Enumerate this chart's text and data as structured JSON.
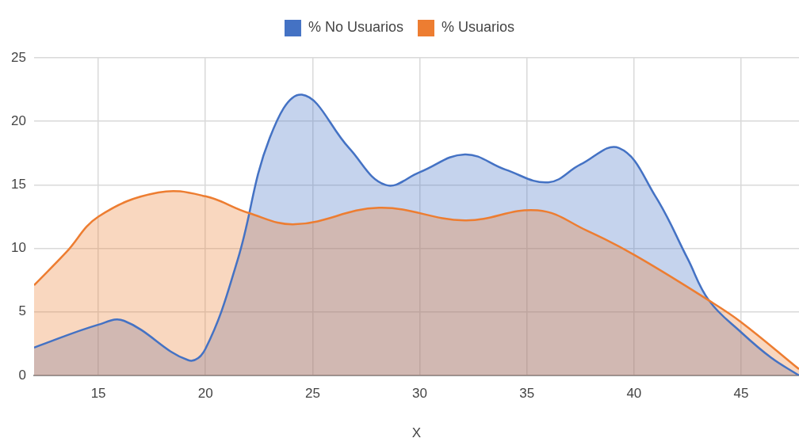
{
  "chart_data": {
    "type": "area",
    "xlabel": "X",
    "xlim": [
      12,
      47.7
    ],
    "xticks": [
      15,
      20,
      25,
      30,
      35,
      40,
      45
    ],
    "ylim": [
      0,
      25
    ],
    "yticks": [
      0,
      5,
      10,
      15,
      20,
      25
    ],
    "grid": true,
    "legend": "top",
    "series": [
      {
        "name": "% No Usuarios",
        "color": "#4472c4",
        "x": [
          12,
          15,
          16.2,
          19.2,
          20,
          21.5,
          23,
          24.5,
          26.7,
          28.4,
          30,
          32.1,
          34,
          36,
          37.5,
          39.3,
          41,
          42.5,
          43.5,
          45,
          46.4,
          47.7
        ],
        "values": [
          2.2,
          4.0,
          4.3,
          1.2,
          2.1,
          9.1,
          18.7,
          22.1,
          17.9,
          15.0,
          16.0,
          17.4,
          16.2,
          15.2,
          16.6,
          17.9,
          14.1,
          9.2,
          5.9,
          3.4,
          1.4,
          0
        ]
      },
      {
        "name": "% Usuarios",
        "color": "#ed7d31",
        "x": [
          12,
          13.5,
          15,
          17.8,
          20,
          22,
          24.2,
          28.1,
          32.1,
          35.5,
          37.8,
          40,
          43.5,
          45,
          47.7
        ],
        "values": [
          7.1,
          9.7,
          12.5,
          14.4,
          14.1,
          12.8,
          11.9,
          13.2,
          12.2,
          13.0,
          11.4,
          9.5,
          5.9,
          4.2,
          0.5
        ]
      }
    ]
  }
}
